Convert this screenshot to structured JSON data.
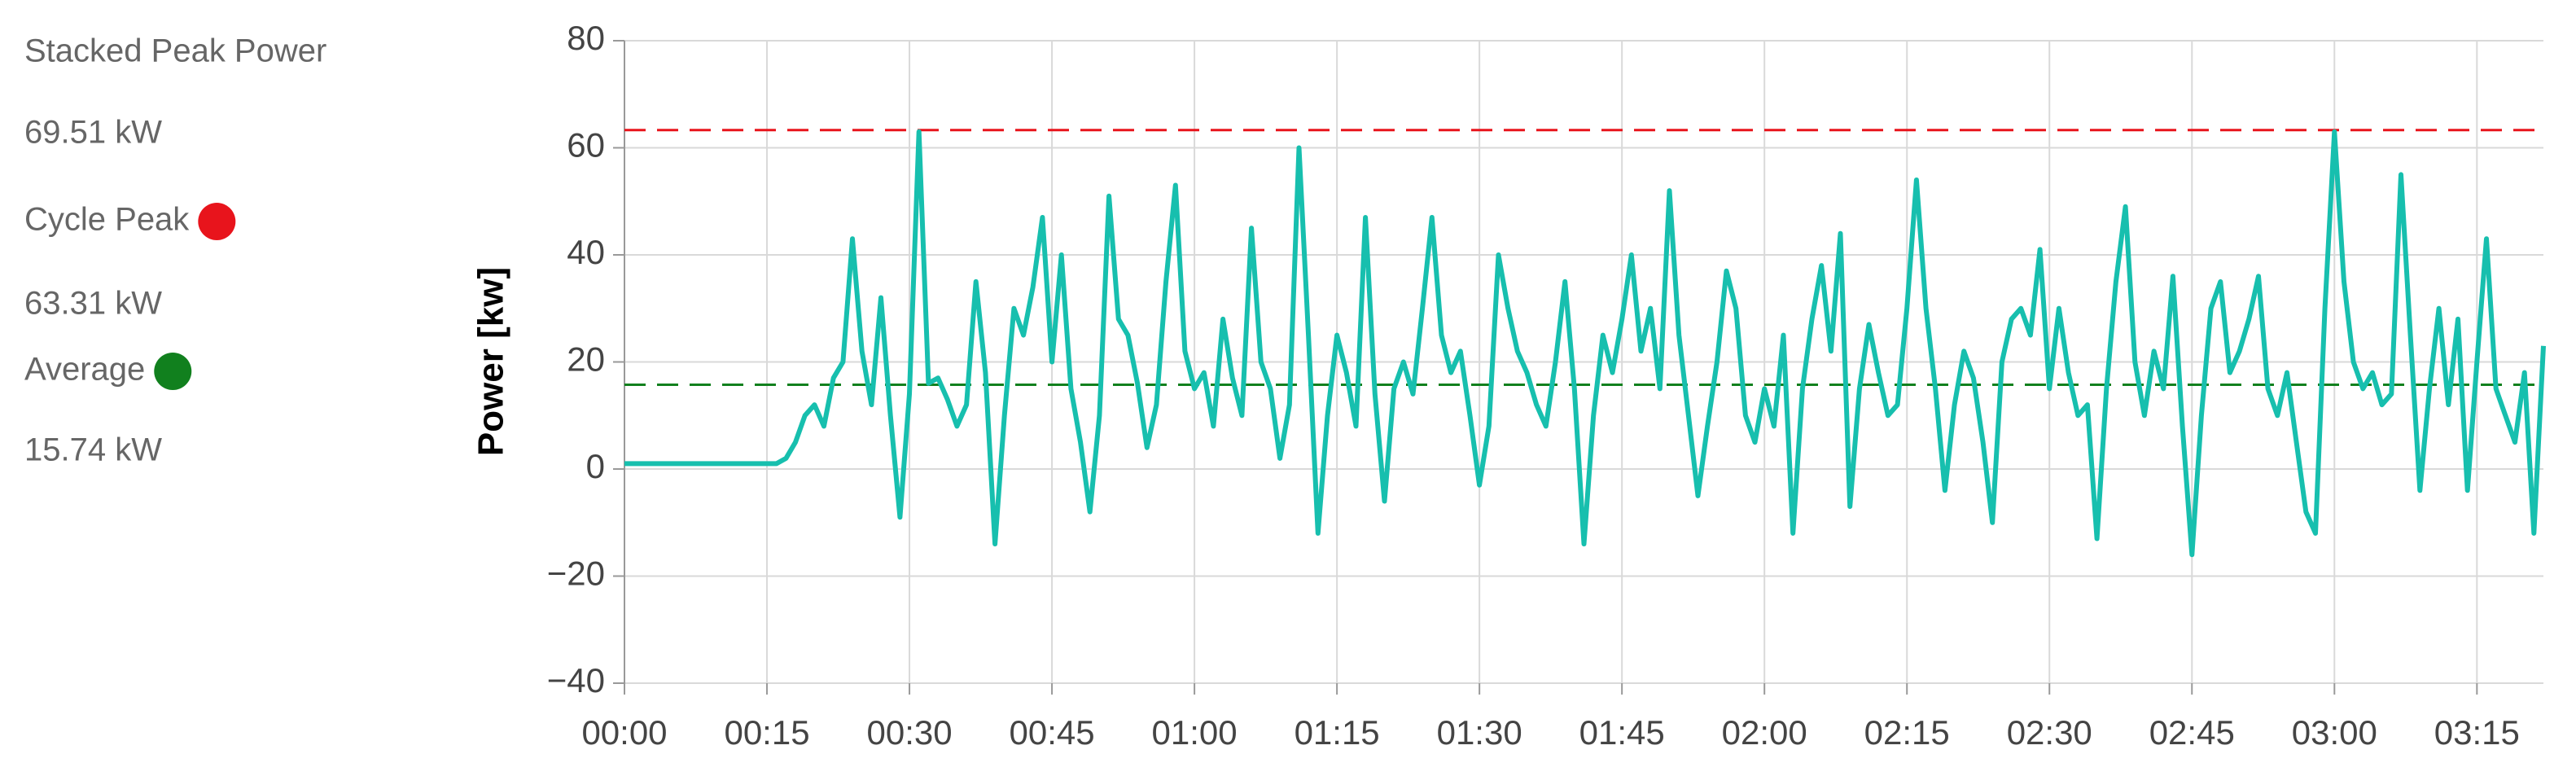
{
  "chart_data": {
    "type": "line",
    "y_label": "Power [kw]",
    "color": "#17bfae",
    "grid": true,
    "stats": [
      {
        "label": "Stacked Peak Power",
        "value": 69.51,
        "value_label": "69.51 kW"
      },
      {
        "label": "Cycle Peak",
        "value": 63.31,
        "value_label": "63.31 kW",
        "color": "#e8141c"
      },
      {
        "label": "Average",
        "value": 15.74,
        "value_label": "15.74 kW",
        "color": "#11801e"
      }
    ],
    "xlim": [
      0,
      202
    ],
    "ylim": [
      -40,
      80
    ],
    "xticks": [
      {
        "value": 0,
        "label": "00:00"
      },
      {
        "value": 15,
        "label": "00:15"
      },
      {
        "value": 30,
        "label": "00:30"
      },
      {
        "value": 45,
        "label": "00:45"
      },
      {
        "value": 60,
        "label": "01:00"
      },
      {
        "value": 75,
        "label": "01:15"
      },
      {
        "value": 90,
        "label": "01:30"
      },
      {
        "value": 105,
        "label": "01:45"
      },
      {
        "value": 120,
        "label": "02:00"
      },
      {
        "value": 135,
        "label": "02:15"
      },
      {
        "value": 150,
        "label": "02:30"
      },
      {
        "value": 165,
        "label": "02:45"
      },
      {
        "value": 180,
        "label": "03:00"
      },
      {
        "value": 195,
        "label": "03:15"
      }
    ],
    "yticks": [
      {
        "value": -40,
        "label": "−40"
      },
      {
        "value": -20,
        "label": "−20"
      },
      0,
      20,
      40,
      60,
      80
    ],
    "x": [
      0,
      1,
      2,
      3,
      4,
      5,
      6,
      7,
      8,
      9,
      10,
      11,
      12,
      13,
      14,
      15,
      16,
      17,
      18,
      19,
      20,
      21,
      22,
      23,
      24,
      25,
      26,
      27,
      28,
      29,
      30,
      31,
      32,
      33,
      34,
      35,
      36,
      37,
      38,
      39,
      40,
      41,
      42,
      43,
      44,
      45,
      46,
      47,
      48,
      49,
      50,
      51,
      52,
      53,
      54,
      55,
      56,
      57,
      58,
      59,
      60,
      61,
      62,
      63,
      64,
      65,
      66,
      67,
      68,
      69,
      70,
      71,
      72,
      73,
      74,
      75,
      76,
      77,
      78,
      79,
      80,
      81,
      82,
      83,
      84,
      85,
      86,
      87,
      88,
      89,
      90,
      91,
      92,
      93,
      94,
      95,
      96,
      97,
      98,
      99,
      100,
      101,
      102,
      103,
      104,
      105,
      106,
      107,
      108,
      109,
      110,
      111,
      112,
      113,
      114,
      115,
      116,
      117,
      118,
      119,
      120,
      121,
      122,
      123,
      124,
      125,
      126,
      127,
      128,
      129,
      130,
      131,
      132,
      133,
      134,
      135,
      136,
      137,
      138,
      139,
      140,
      141,
      142,
      143,
      144,
      145,
      146,
      147,
      148,
      149,
      150,
      151,
      152,
      153,
      154,
      155,
      156,
      157,
      158,
      159,
      160,
      161,
      162,
      163,
      164,
      165,
      166,
      167,
      168,
      169,
      170,
      171,
      172,
      173,
      174,
      175,
      176,
      177,
      178,
      179,
      180,
      181,
      182,
      183,
      184,
      185,
      186,
      187,
      188,
      189,
      190,
      191,
      192,
      193,
      194,
      195,
      196,
      197,
      198,
      199,
      200,
      201,
      202
    ],
    "values": [
      1,
      1,
      1,
      1,
      1,
      1,
      1,
      1,
      1,
      1,
      1,
      1,
      1,
      1,
      1,
      1,
      1,
      2,
      5,
      10,
      12,
      8,
      17,
      20,
      43,
      22,
      12,
      32,
      10,
      -9,
      14,
      63,
      16,
      17,
      13,
      8,
      12,
      35,
      18,
      -14,
      10,
      30,
      25,
      34,
      47,
      20,
      40,
      15,
      5,
      -8,
      10,
      51,
      28,
      25,
      16,
      4,
      12,
      35,
      53,
      22,
      15,
      18,
      8,
      28,
      17,
      10,
      45,
      20,
      15,
      2,
      12,
      60,
      25,
      -12,
      10,
      25,
      18,
      8,
      47,
      14,
      -6,
      15,
      20,
      14,
      30,
      47,
      25,
      18,
      22,
      10,
      -3,
      8,
      40,
      30,
      22,
      18,
      12,
      8,
      20,
      35,
      15,
      -14,
      10,
      25,
      18,
      28,
      40,
      22,
      30,
      15,
      52,
      25,
      10,
      -5,
      8,
      20,
      37,
      30,
      10,
      5,
      15,
      8,
      25,
      -12,
      15,
      28,
      38,
      22,
      44,
      -7,
      15,
      27,
      18,
      10,
      12,
      30,
      54,
      30,
      15,
      -4,
      12,
      22,
      17,
      5,
      -10,
      20,
      28,
      30,
      25,
      41,
      15,
      30,
      18,
      10,
      12,
      -13,
      15,
      35,
      49,
      20,
      10,
      22,
      15,
      36,
      8,
      -16,
      10,
      30,
      35,
      18,
      22,
      28,
      36,
      15,
      10,
      18,
      5,
      -8,
      -12,
      30,
      63,
      35,
      20,
      15,
      18,
      12,
      14,
      55,
      25,
      -4,
      15,
      30,
      12,
      28,
      -4,
      20,
      43,
      15,
      10,
      5,
      18,
      -12,
      23
    ]
  }
}
